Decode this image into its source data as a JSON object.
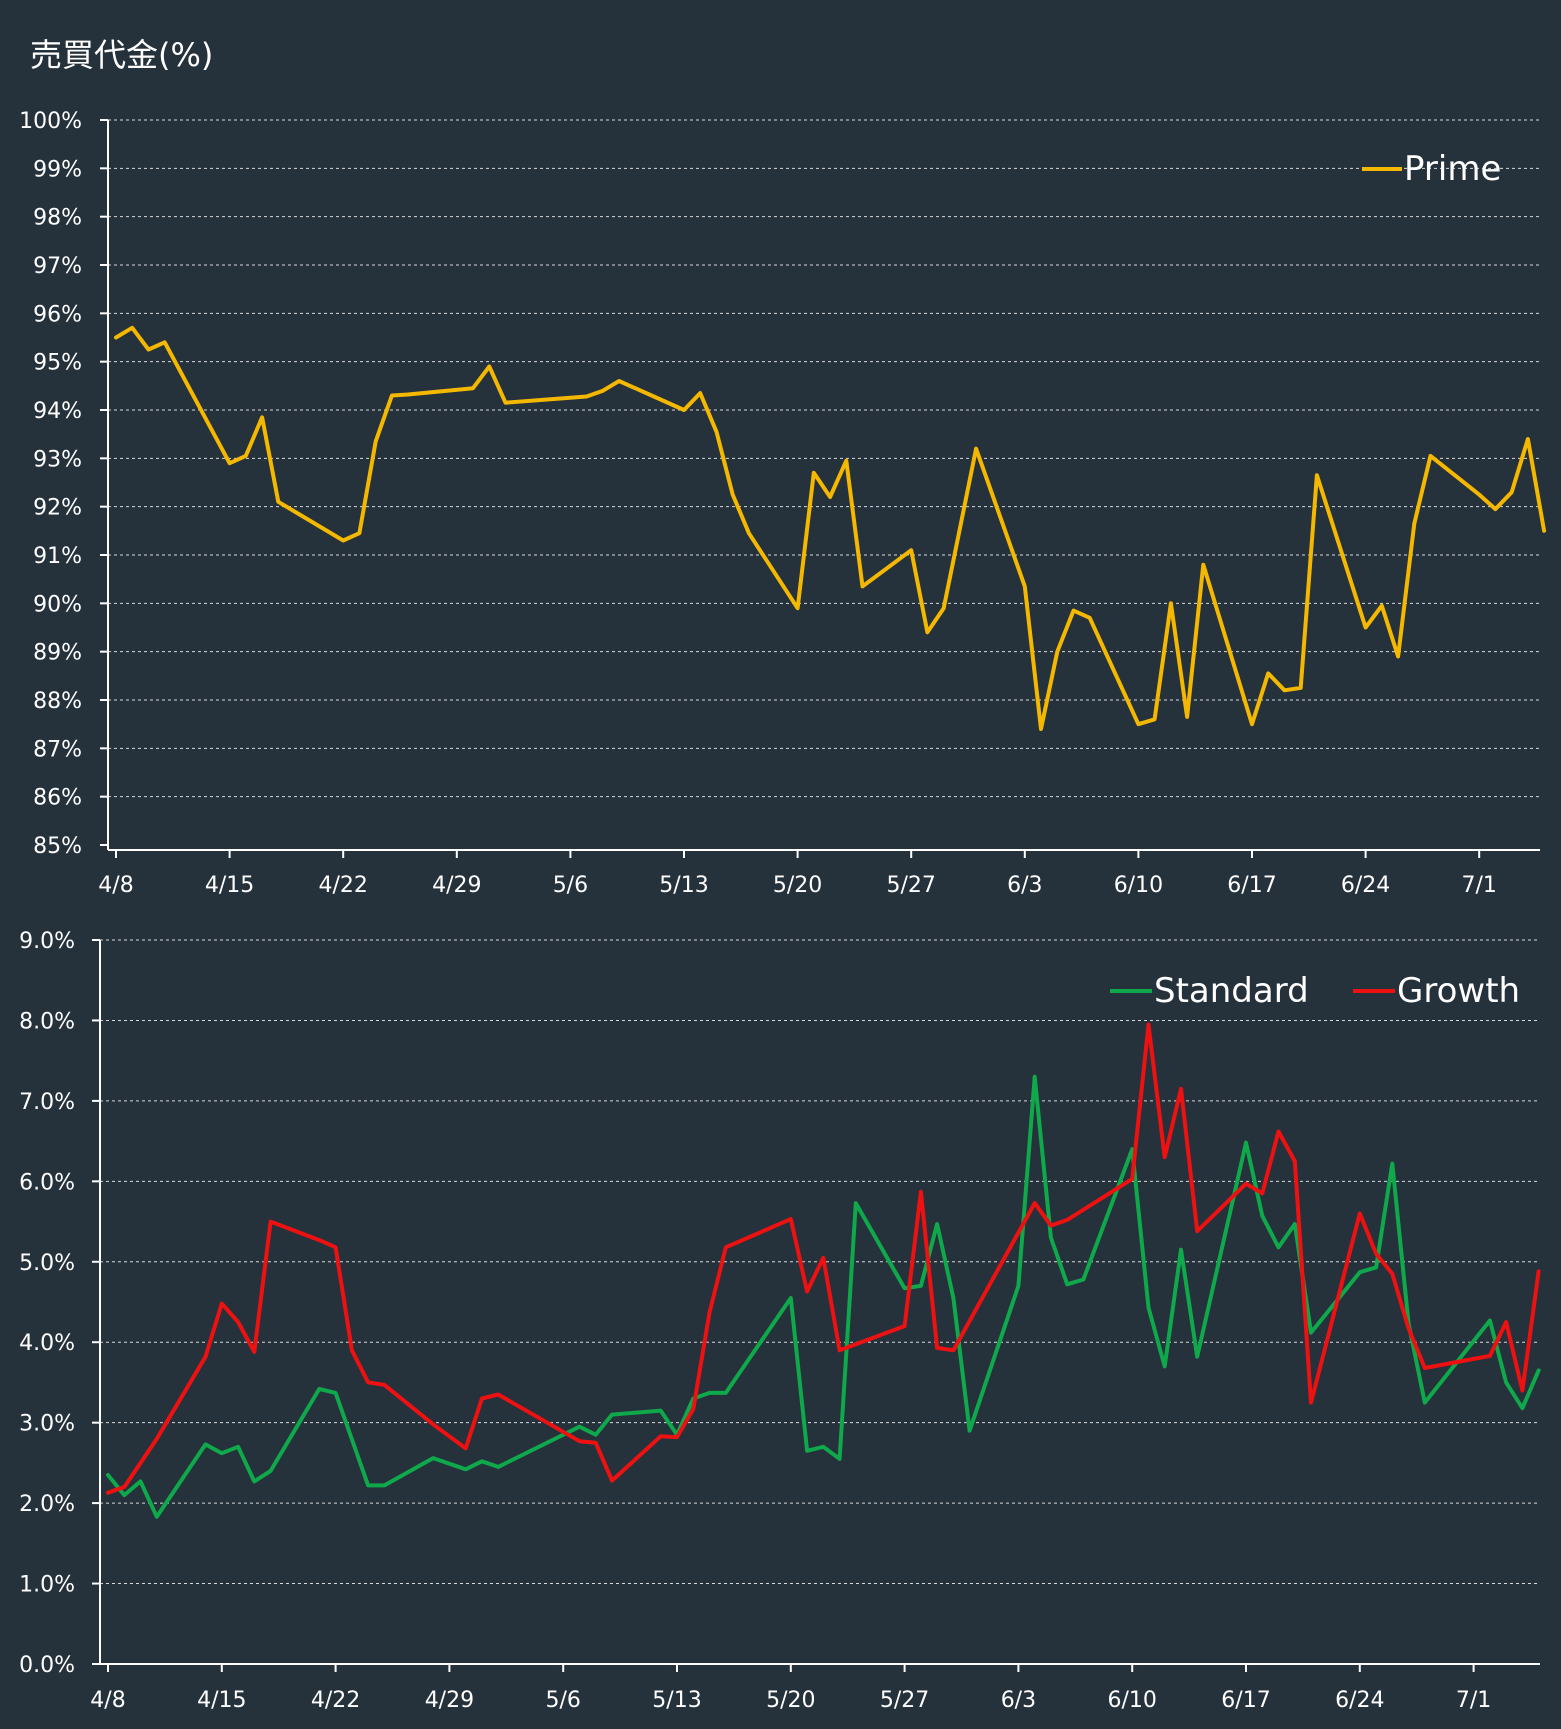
{
  "title": "売買代金(%)",
  "colors": {
    "background": "#25313b",
    "prime": "#f5b800",
    "standard": "#0fa84a",
    "growth": "#ee1111",
    "axis": "#ffffff",
    "grid": "#d9d9d9"
  },
  "chart_data": [
    {
      "type": "line",
      "title": "",
      "xlabel": "",
      "ylabel": "",
      "ylim": [
        85,
        100
      ],
      "y_ticks": [
        "100%",
        "99%",
        "98%",
        "97%",
        "96%",
        "95%",
        "94%",
        "93%",
        "92%",
        "91%",
        "90%",
        "89%",
        "88%",
        "87%",
        "86%",
        "85%"
      ],
      "x_ticks": [
        "4/8",
        "4/15",
        "4/22",
        "4/29",
        "5/6",
        "5/13",
        "5/20",
        "5/27",
        "6/3",
        "6/10",
        "6/17",
        "6/24",
        "7/1"
      ],
      "grid": true,
      "legend_position": "top-right",
      "series": [
        {
          "name": "Prime",
          "color": "#f5b800",
          "points": [
            [
              "4/8",
              95.5
            ],
            [
              "4/9",
              95.7
            ],
            [
              "4/10",
              95.25
            ],
            [
              "4/11",
              95.4
            ],
            [
              "4/15",
              92.9
            ],
            [
              "4/16",
              93.05
            ],
            [
              "4/17",
              93.85
            ],
            [
              "4/18",
              92.1
            ],
            [
              "4/22",
              91.3
            ],
            [
              "4/23",
              91.45
            ],
            [
              "4/24",
              93.35
            ],
            [
              "4/25",
              94.3
            ],
            [
              "4/26",
              94.32
            ],
            [
              "4/30",
              94.45
            ],
            [
              "5/1",
              94.9
            ],
            [
              "5/2",
              94.15
            ],
            [
              "5/7",
              94.28
            ],
            [
              "5/8",
              94.4
            ],
            [
              "5/9",
              94.6
            ],
            [
              "5/13",
              94.0
            ],
            [
              "5/14",
              94.35
            ],
            [
              "5/15",
              93.55
            ],
            [
              "5/16",
              92.25
            ],
            [
              "5/17",
              91.45
            ],
            [
              "5/20",
              89.9
            ],
            [
              "5/21",
              92.7
            ],
            [
              "5/22",
              92.2
            ],
            [
              "5/23",
              92.95
            ],
            [
              "5/24",
              90.35
            ],
            [
              "5/27",
              91.1
            ],
            [
              "5/28",
              89.4
            ],
            [
              "5/29",
              89.9
            ],
            [
              "5/31",
              93.2
            ],
            [
              "6/3",
              90.35
            ],
            [
              "6/4",
              87.4
            ],
            [
              "6/5",
              89.0
            ],
            [
              "6/6",
              89.85
            ],
            [
              "6/7",
              89.7
            ],
            [
              "6/10",
              87.5
            ],
            [
              "6/11",
              87.6
            ],
            [
              "6/12",
              90.0
            ],
            [
              "6/13",
              87.65
            ],
            [
              "6/14",
              90.8
            ],
            [
              "6/17",
              87.5
            ],
            [
              "6/18",
              88.55
            ],
            [
              "6/19",
              88.2
            ],
            [
              "6/20",
              88.25
            ],
            [
              "6/21",
              92.65
            ],
            [
              "6/24",
              89.5
            ],
            [
              "6/25",
              89.95
            ],
            [
              "6/26",
              88.9
            ],
            [
              "6/27",
              91.65
            ],
            [
              "6/28",
              93.05
            ],
            [
              "7/1",
              92.25
            ],
            [
              "7/2",
              91.95
            ],
            [
              "7/3",
              92.3
            ],
            [
              "7/4",
              93.4
            ],
            [
              "7/5",
              91.5
            ]
          ]
        }
      ]
    },
    {
      "type": "line",
      "title": "",
      "xlabel": "",
      "ylabel": "",
      "ylim": [
        0,
        9
      ],
      "y_ticks": [
        "9.0%",
        "8.0%",
        "7.0%",
        "6.0%",
        "5.0%",
        "4.0%",
        "3.0%",
        "2.0%",
        "1.0%",
        "0.0%"
      ],
      "x_ticks": [
        "4/8",
        "4/15",
        "4/22",
        "4/29",
        "5/6",
        "5/13",
        "5/20",
        "5/27",
        "6/3",
        "6/10",
        "6/17",
        "6/24",
        "7/1"
      ],
      "grid": true,
      "legend_position": "top-right",
      "series": [
        {
          "name": "Standard",
          "color": "#0fa84a",
          "points": [
            [
              "4/8",
              2.35
            ],
            [
              "4/9",
              2.1
            ],
            [
              "4/10",
              2.27
            ],
            [
              "4/11",
              1.83
            ],
            [
              "4/14",
              2.73
            ],
            [
              "4/15",
              2.62
            ],
            [
              "4/16",
              2.7
            ],
            [
              "4/17",
              2.27
            ],
            [
              "4/18",
              2.4
            ],
            [
              "4/21",
              3.42
            ],
            [
              "4/22",
              3.37
            ],
            [
              "4/24",
              2.22
            ],
            [
              "4/25",
              2.22
            ],
            [
              "4/28",
              2.56
            ],
            [
              "4/30",
              2.42
            ],
            [
              "5/1",
              2.52
            ],
            [
              "5/2",
              2.45
            ],
            [
              "5/7",
              2.95
            ],
            [
              "5/8",
              2.85
            ],
            [
              "5/9",
              3.1
            ],
            [
              "5/12",
              3.15
            ],
            [
              "5/13",
              2.85
            ],
            [
              "5/14",
              3.3
            ],
            [
              "5/15",
              3.37
            ],
            [
              "5/16",
              3.37
            ],
            [
              "5/20",
              4.55
            ],
            [
              "5/21",
              2.65
            ],
            [
              "5/22",
              2.7
            ],
            [
              "5/23",
              2.55
            ],
            [
              "5/24",
              5.73
            ],
            [
              "5/27",
              4.67
            ],
            [
              "5/28",
              4.7
            ],
            [
              "5/29",
              5.47
            ],
            [
              "5/30",
              4.55
            ],
            [
              "5/31",
              2.9
            ],
            [
              "6/3",
              4.7
            ],
            [
              "6/4",
              7.3
            ],
            [
              "6/5",
              5.3
            ],
            [
              "6/6",
              4.72
            ],
            [
              "6/7",
              4.78
            ],
            [
              "6/10",
              6.4
            ],
            [
              "6/11",
              4.43
            ],
            [
              "6/12",
              3.7
            ],
            [
              "6/13",
              5.15
            ],
            [
              "6/14",
              3.82
            ],
            [
              "6/17",
              6.48
            ],
            [
              "6/18",
              5.57
            ],
            [
              "6/19",
              5.18
            ],
            [
              "6/20",
              5.47
            ],
            [
              "6/21",
              4.12
            ],
            [
              "6/24",
              4.87
            ],
            [
              "6/25",
              4.93
            ],
            [
              "6/26",
              6.22
            ],
            [
              "6/27",
              4.23
            ],
            [
              "6/28",
              3.25
            ],
            [
              "7/2",
              4.27
            ],
            [
              "7/3",
              3.5
            ],
            [
              "7/4",
              3.18
            ],
            [
              "7/5",
              3.65
            ]
          ]
        },
        {
          "name": "Growth",
          "color": "#ee1111",
          "points": [
            [
              "4/8",
              2.13
            ],
            [
              "4/9",
              2.2
            ],
            [
              "4/11",
              2.8
            ],
            [
              "4/14",
              3.82
            ],
            [
              "4/15",
              4.48
            ],
            [
              "4/16",
              4.25
            ],
            [
              "4/17",
              3.88
            ],
            [
              "4/18",
              5.5
            ],
            [
              "4/21",
              5.27
            ],
            [
              "4/22",
              5.18
            ],
            [
              "4/23",
              3.9
            ],
            [
              "4/24",
              3.5
            ],
            [
              "4/25",
              3.47
            ],
            [
              "4/28",
              2.98
            ],
            [
              "4/30",
              2.68
            ],
            [
              "5/1",
              3.3
            ],
            [
              "5/2",
              3.35
            ],
            [
              "5/7",
              2.77
            ],
            [
              "5/8",
              2.75
            ],
            [
              "5/9",
              2.28
            ],
            [
              "5/12",
              2.83
            ],
            [
              "5/13",
              2.82
            ],
            [
              "5/14",
              3.17
            ],
            [
              "5/15",
              4.37
            ],
            [
              "5/16",
              5.18
            ],
            [
              "5/20",
              5.53
            ],
            [
              "5/21",
              4.63
            ],
            [
              "5/22",
              5.05
            ],
            [
              "5/23",
              3.9
            ],
            [
              "5/27",
              4.2
            ],
            [
              "5/28",
              5.87
            ],
            [
              "5/29",
              3.93
            ],
            [
              "5/30",
              3.9
            ],
            [
              "6/4",
              5.73
            ],
            [
              "6/5",
              5.45
            ],
            [
              "6/6",
              5.52
            ],
            [
              "6/10",
              6.03
            ],
            [
              "6/11",
              7.95
            ],
            [
              "6/12",
              6.3
            ],
            [
              "6/13",
              7.15
            ],
            [
              "6/14",
              5.38
            ],
            [
              "6/17",
              5.97
            ],
            [
              "6/18",
              5.85
            ],
            [
              "6/19",
              6.62
            ],
            [
              "6/20",
              6.25
            ],
            [
              "6/21",
              3.25
            ],
            [
              "6/24",
              5.6
            ],
            [
              "6/25",
              5.1
            ],
            [
              "6/26",
              4.85
            ],
            [
              "6/27",
              4.17
            ],
            [
              "6/28",
              3.68
            ],
            [
              "7/2",
              3.83
            ],
            [
              "7/3",
              4.25
            ],
            [
              "7/4",
              3.4
            ],
            [
              "7/5",
              4.88
            ]
          ]
        }
      ]
    }
  ]
}
